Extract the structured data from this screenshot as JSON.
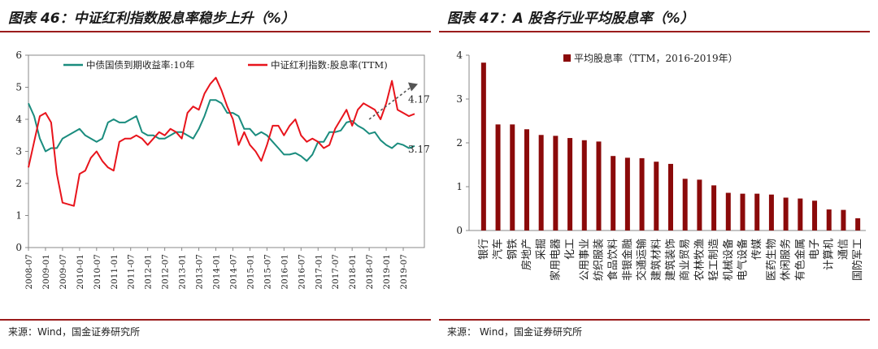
{
  "left": {
    "title": "图表 46：中证红利指数股息率稳步上升（%）",
    "source": "来源：Wind，国金证券研究所"
  },
  "right": {
    "title": "图表 47：A 股各行业平均股息率（%）",
    "source": "来源： Wind，国金证券研究所"
  },
  "colors": {
    "series_green": "#1a8c7e",
    "series_red": "#e8141c",
    "bar": "#8b0a0a",
    "title_rule": "#9b1c1c",
    "arrow": "#555555"
  },
  "chart_data": [
    {
      "type": "line",
      "title": "",
      "xlabel": "",
      "ylabel": "",
      "ylim": [
        0,
        6
      ],
      "yticks": [
        "0",
        "1",
        "2",
        "3",
        "4",
        "5",
        "6"
      ],
      "x_tick_labels": [
        "2008-07",
        "2009-01",
        "2009-07",
        "2010-01",
        "2010-07",
        "2011-01",
        "2011-07",
        "2012-01",
        "2012-07",
        "2013-01",
        "2013-07",
        "2014-01",
        "2014-07",
        "2015-01",
        "2015-07",
        "2016-01",
        "2016-07",
        "2017-01",
        "2017-07",
        "2018-01",
        "2018-07",
        "2019-01",
        "2019-07"
      ],
      "grid": false,
      "legend": "top",
      "series": [
        {
          "name": "中债国债到期收益率:10年",
          "color": "#1a8c7e",
          "x": [
            "2008-07",
            "2008-09",
            "2008-11",
            "2009-01",
            "2009-03",
            "2009-05",
            "2009-07",
            "2009-09",
            "2009-11",
            "2010-01",
            "2010-03",
            "2010-05",
            "2010-07",
            "2010-09",
            "2010-11",
            "2011-01",
            "2011-03",
            "2011-05",
            "2011-07",
            "2011-09",
            "2011-11",
            "2012-01",
            "2012-03",
            "2012-05",
            "2012-07",
            "2012-09",
            "2012-11",
            "2013-01",
            "2013-03",
            "2013-05",
            "2013-07",
            "2013-09",
            "2013-11",
            "2014-01",
            "2014-03",
            "2014-05",
            "2014-07",
            "2014-09",
            "2014-11",
            "2015-01",
            "2015-03",
            "2015-05",
            "2015-07",
            "2015-09",
            "2015-11",
            "2016-01",
            "2016-03",
            "2016-05",
            "2016-07",
            "2016-09",
            "2016-11",
            "2017-01",
            "2017-03",
            "2017-05",
            "2017-07",
            "2017-09",
            "2017-11",
            "2018-01",
            "2018-03",
            "2018-05",
            "2018-07",
            "2018-09",
            "2018-11",
            "2019-01",
            "2019-03",
            "2019-05",
            "2019-07",
            "2019-09",
            "2019-11"
          ],
          "values": [
            4.5,
            4.1,
            3.4,
            3.0,
            3.1,
            3.1,
            3.4,
            3.5,
            3.6,
            3.7,
            3.5,
            3.4,
            3.3,
            3.4,
            3.9,
            4.0,
            3.9,
            3.9,
            4.0,
            4.1,
            3.6,
            3.5,
            3.5,
            3.4,
            3.4,
            3.5,
            3.6,
            3.6,
            3.5,
            3.4,
            3.7,
            4.1,
            4.6,
            4.6,
            4.5,
            4.2,
            4.2,
            4.1,
            3.7,
            3.7,
            3.5,
            3.6,
            3.5,
            3.3,
            3.1,
            2.9,
            2.9,
            2.95,
            2.85,
            2.7,
            2.9,
            3.3,
            3.3,
            3.6,
            3.6,
            3.65,
            3.9,
            3.95,
            3.8,
            3.7,
            3.55,
            3.6,
            3.35,
            3.2,
            3.1,
            3.25,
            3.2,
            3.1,
            3.17
          ],
          "end_label": "3.17"
        },
        {
          "name": "中证红利指数:股息率(TTM)",
          "color": "#e8141c",
          "x": [
            "2008-07",
            "2008-09",
            "2008-11",
            "2009-01",
            "2009-03",
            "2009-05",
            "2009-07",
            "2009-09",
            "2009-11",
            "2010-01",
            "2010-03",
            "2010-05",
            "2010-07",
            "2010-09",
            "2010-11",
            "2011-01",
            "2011-03",
            "2011-05",
            "2011-07",
            "2011-09",
            "2011-11",
            "2012-01",
            "2012-03",
            "2012-05",
            "2012-07",
            "2012-09",
            "2012-11",
            "2013-01",
            "2013-03",
            "2013-05",
            "2013-07",
            "2013-09",
            "2013-11",
            "2014-01",
            "2014-03",
            "2014-05",
            "2014-07",
            "2014-09",
            "2014-11",
            "2015-01",
            "2015-03",
            "2015-05",
            "2015-07",
            "2015-09",
            "2015-11",
            "2016-01",
            "2016-03",
            "2016-05",
            "2016-07",
            "2016-09",
            "2016-11",
            "2017-01",
            "2017-03",
            "2017-05",
            "2017-07",
            "2017-09",
            "2017-11",
            "2018-01",
            "2018-03",
            "2018-05",
            "2018-07",
            "2018-09",
            "2018-11",
            "2019-01",
            "2019-03",
            "2019-05",
            "2019-07",
            "2019-09",
            "2019-11"
          ],
          "values": [
            2.5,
            3.3,
            4.1,
            4.2,
            3.9,
            2.3,
            1.4,
            1.35,
            1.3,
            2.3,
            2.4,
            2.8,
            3.0,
            2.7,
            2.5,
            2.4,
            3.3,
            3.4,
            3.4,
            3.5,
            3.4,
            3.2,
            3.4,
            3.6,
            3.5,
            3.7,
            3.6,
            3.4,
            4.2,
            4.4,
            4.3,
            4.8,
            5.1,
            5.3,
            4.9,
            4.4,
            4.0,
            3.2,
            3.6,
            3.2,
            3.0,
            2.7,
            3.2,
            3.8,
            3.8,
            3.5,
            3.8,
            4.0,
            3.5,
            3.3,
            3.4,
            3.3,
            3.1,
            3.2,
            3.7,
            4.0,
            4.3,
            3.8,
            4.3,
            4.5,
            4.4,
            4.3,
            4.0,
            4.5,
            5.2,
            4.3,
            4.2,
            4.1,
            4.17
          ],
          "end_label": "4.17"
        }
      ],
      "annotations": [
        {
          "type": "trend-arrow",
          "from": [
            "2018-07",
            4.0
          ],
          "to": [
            "2019-11",
            5.05
          ]
        }
      ]
    },
    {
      "type": "bar",
      "title": "",
      "xlabel": "",
      "ylabel": "",
      "ylim": [
        0,
        4
      ],
      "yticks": [
        "0",
        "1",
        "2",
        "3",
        "4"
      ],
      "grid": false,
      "legend": "top-left",
      "series": [
        {
          "name": "平均股息率（TTM，2016-2019年）",
          "color": "#8b0a0a"
        }
      ],
      "categories": [
        "银行",
        "汽车",
        "钢铁",
        "房地产",
        "采掘",
        "家用电器",
        "化工",
        "公用事业",
        "纺织服装",
        "食品饮料",
        "非银金融",
        "交通运输",
        "建筑材料",
        "建筑装饰",
        "商业贸易",
        "农林牧渔",
        "轻工制造",
        "机械设备",
        "电气设备",
        "传媒",
        "医药生物",
        "休闲服务",
        "有色金属",
        "电子",
        "计算机",
        "通信",
        "国防军工"
      ],
      "values": [
        3.83,
        2.42,
        2.42,
        2.31,
        2.18,
        2.16,
        2.11,
        2.06,
        2.03,
        1.7,
        1.66,
        1.65,
        1.57,
        1.52,
        1.18,
        1.16,
        1.03,
        0.86,
        0.84,
        0.84,
        0.82,
        0.75,
        0.73,
        0.68,
        0.48,
        0.47,
        0.28
      ]
    }
  ]
}
